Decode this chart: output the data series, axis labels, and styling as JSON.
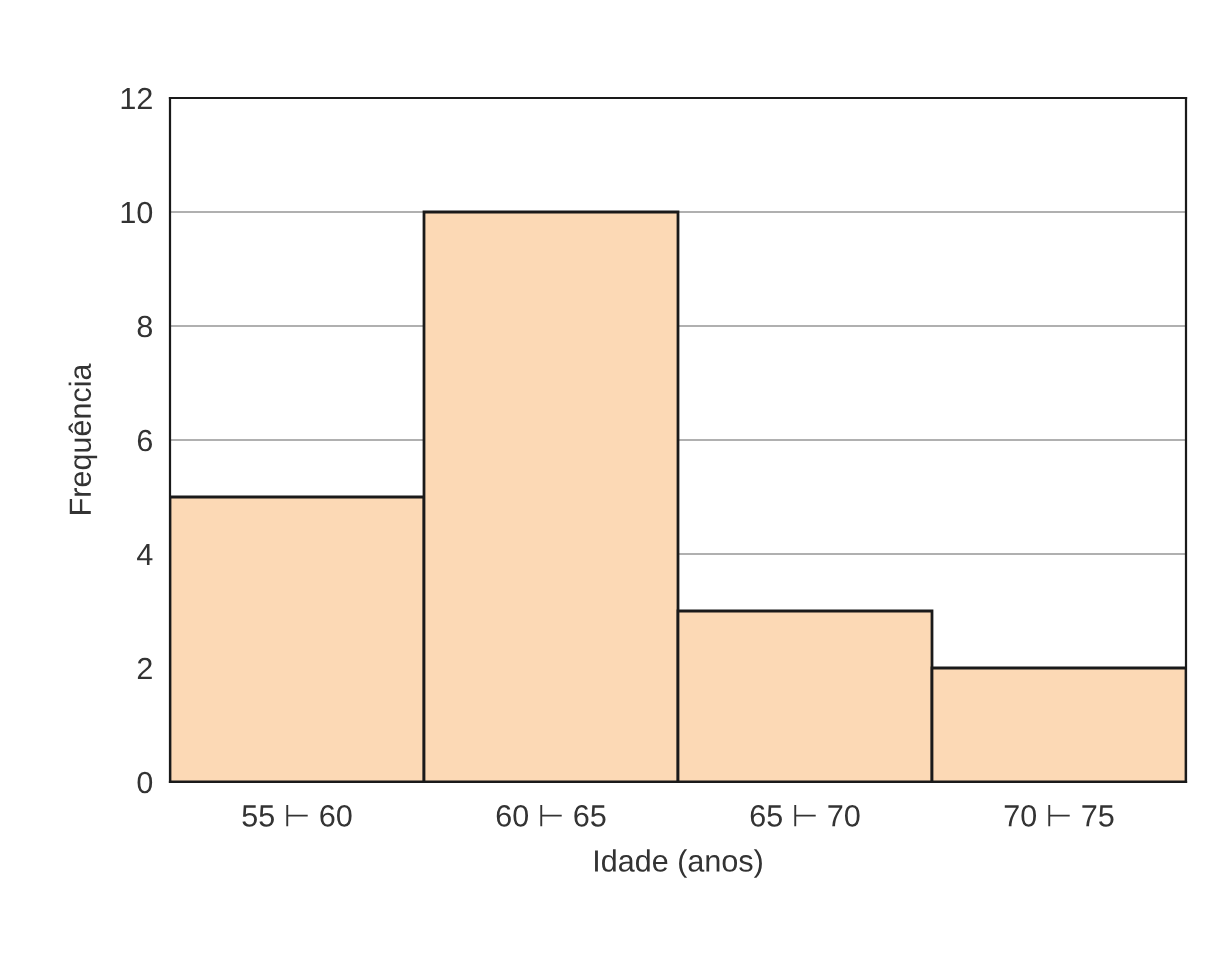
{
  "chart_data": {
    "type": "bar",
    "xlabel": "Idade (anos)",
    "ylabel": "Frequência",
    "categories": [
      "55 ⊢ 60",
      "60 ⊢ 65",
      "65 ⊢ 70",
      "70 ⊢ 75"
    ],
    "values": [
      5,
      10,
      3,
      2
    ],
    "color": "#fcd9b5",
    "ylim": [
      0,
      12
    ],
    "yticks": [
      0,
      2,
      4,
      6,
      8,
      10,
      12
    ],
    "grid": "y"
  }
}
